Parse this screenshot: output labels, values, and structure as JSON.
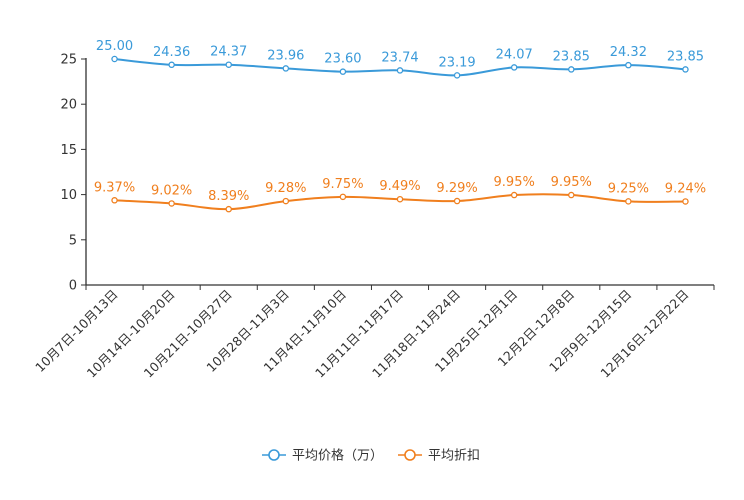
{
  "chart_data": {
    "type": "line",
    "title": "",
    "xlabel": "",
    "ylabel": "",
    "ylim": [
      0,
      25
    ],
    "yticks": [
      0,
      5,
      10,
      15,
      20,
      25
    ],
    "grid": false,
    "legend_position": "bottom-center",
    "categories": [
      "10月7日-10月13日",
      "10月14日-10月20日",
      "10月21日-10月27日",
      "10月28日-11月3日",
      "11月4日-11月10日",
      "11月11日-11月17日",
      "11月18日-11月24日",
      "11月25日-12月1日",
      "12月2日-12月8日",
      "12月9日-12月15日",
      "12月16日-12月22日"
    ],
    "series": [
      {
        "name": "平均价格（万）",
        "color": "#3a9ad9",
        "values": [
          25.0,
          24.36,
          24.37,
          23.96,
          23.6,
          23.74,
          23.19,
          24.07,
          23.85,
          24.32,
          23.85
        ],
        "labels": [
          "25.00",
          "24.36",
          "24.37",
          "23.96",
          "23.60",
          "23.74",
          "23.19",
          "24.07",
          "23.85",
          "24.32",
          "23.85"
        ]
      },
      {
        "name": "平均折扣",
        "color": "#f07f1e",
        "values": [
          9.37,
          9.02,
          8.39,
          9.28,
          9.75,
          9.49,
          9.29,
          9.95,
          9.95,
          9.25,
          9.24
        ],
        "labels": [
          "9.37%",
          "9.02%",
          "8.39%",
          "9.28%",
          "9.75%",
          "9.49%",
          "9.29%",
          "9.95%",
          "9.95%",
          "9.25%",
          "9.24%"
        ]
      }
    ]
  }
}
